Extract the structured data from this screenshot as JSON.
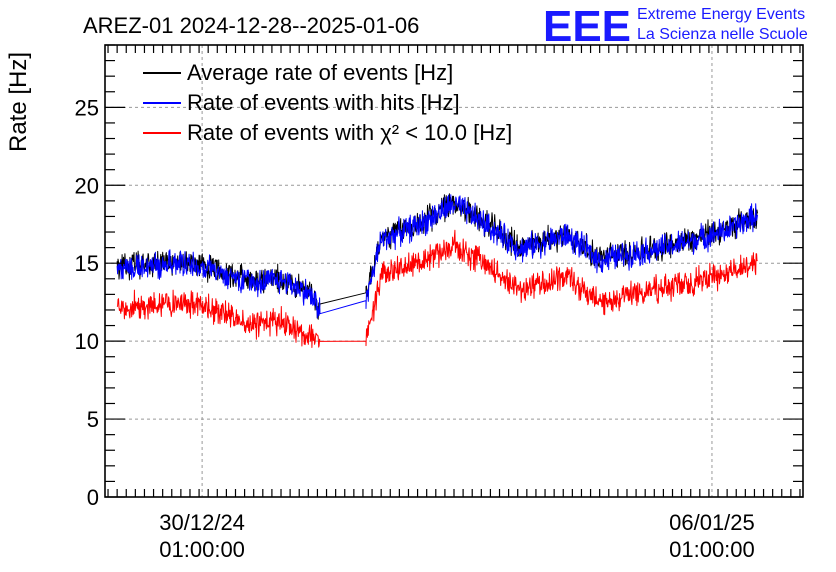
{
  "chart_data": {
    "type": "line",
    "title": "AREZ-01 2024-12-28--2025-01-06",
    "ylabel": "Rate [Hz]",
    "xlabel": "",
    "ylim": [
      0,
      29
    ],
    "y_ticks": [
      0,
      5,
      10,
      15,
      20,
      25
    ],
    "x_tick_labels": [
      {
        "date": "30/12/24",
        "time": "01:00:00"
      },
      {
        "date": "06/01/25",
        "time": "01:00:00"
      }
    ],
    "x_range": [
      "2024-12-28T17:00:00",
      "2025-01-07T07:00:00"
    ],
    "grid": true,
    "legend_placement": "top-left",
    "logo": {
      "mark": "EEE",
      "line1": "Extreme Energy Events",
      "line2": "La Scienza nelle Scuole"
    },
    "series": [
      {
        "name": "Average rate of events [Hz]",
        "color": "#000000",
        "noise": 0.7,
        "x": [
          "2024-12-28T21:00:00",
          "2024-12-29T06:00:00",
          "2024-12-29T18:00:00",
          "2024-12-30T06:00:00",
          "2024-12-30T18:00:00",
          "2024-12-31T04:00:00",
          "2024-12-31T12:00:00",
          "2024-12-31T16:00:00",
          "2025-01-01T07:00:00",
          "2025-01-01T12:00:00",
          "2025-01-02T01:00:00",
          "2025-01-02T12:00:00",
          "2025-01-02T20:00:00",
          "2025-01-03T10:00:00",
          "2025-01-04T01:00:00",
          "2025-01-04T12:00:00",
          "2025-01-05T01:00:00",
          "2025-01-05T12:00:00",
          "2025-01-06T06:00:00",
          "2025-01-06T16:00:00"
        ],
        "y": [
          14.8,
          14.9,
          15.1,
          14.6,
          13.9,
          14.0,
          13.2,
          12.1,
          13.1,
          16.6,
          17.6,
          18.9,
          17.9,
          16.0,
          16.9,
          15.3,
          15.8,
          16.2,
          17.2,
          18.2
        ]
      },
      {
        "name": "Rate of events with hits [Hz]",
        "color": "#0000ff",
        "noise": 0.7,
        "x": [
          "2024-12-28T21:00:00",
          "2024-12-29T06:00:00",
          "2024-12-29T18:00:00",
          "2024-12-30T06:00:00",
          "2024-12-30T18:00:00",
          "2024-12-31T04:00:00",
          "2024-12-31T12:00:00",
          "2024-12-31T16:00:00",
          "2025-01-01T07:00:00",
          "2025-01-01T12:00:00",
          "2025-01-02T01:00:00",
          "2025-01-02T12:00:00",
          "2025-01-02T20:00:00",
          "2025-01-03T10:00:00",
          "2025-01-04T01:00:00",
          "2025-01-04T12:00:00",
          "2025-01-05T01:00:00",
          "2025-01-05T12:00:00",
          "2025-01-06T06:00:00",
          "2025-01-06T16:00:00"
        ],
        "y": [
          14.7,
          14.8,
          15.0,
          14.5,
          13.8,
          13.9,
          13.1,
          12.0,
          12.6,
          16.5,
          17.5,
          18.8,
          17.8,
          15.9,
          16.8,
          15.2,
          15.7,
          16.1,
          17.1,
          18.1
        ]
      },
      {
        "name": "Rate of events with χ² < 10.0 [Hz]",
        "color": "#ff0000",
        "noise": 0.7,
        "x": [
          "2024-12-28T21:00:00",
          "2024-12-29T06:00:00",
          "2024-12-29T18:00:00",
          "2024-12-30T06:00:00",
          "2024-12-30T18:00:00",
          "2024-12-31T04:00:00",
          "2024-12-31T12:00:00",
          "2024-12-31T16:00:00",
          "2025-01-01T07:00:00",
          "2025-01-01T12:00:00",
          "2025-01-02T01:00:00",
          "2025-01-02T12:00:00",
          "2025-01-02T20:00:00",
          "2025-01-03T10:00:00",
          "2025-01-04T01:00:00",
          "2025-01-04T12:00:00",
          "2025-01-05T01:00:00",
          "2025-01-05T12:00:00",
          "2025-01-06T06:00:00",
          "2025-01-06T16:00:00"
        ],
        "y": [
          12.2,
          12.3,
          12.5,
          11.9,
          11.1,
          11.3,
          10.3,
          9.9,
          10.0,
          14.3,
          15.1,
          16.2,
          15.2,
          13.3,
          14.1,
          12.4,
          13.2,
          13.5,
          14.3,
          15.2
        ]
      }
    ]
  }
}
